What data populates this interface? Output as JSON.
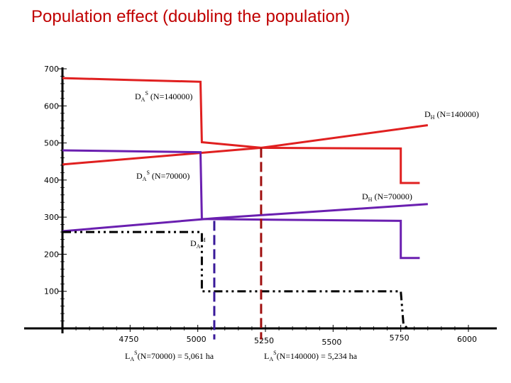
{
  "title": "Population effect (doubling the population)",
  "colors": {
    "red": "#e02020",
    "purple": "#6a1fb0",
    "black": "#000000",
    "red_dashed": "#a01010",
    "purple_dashed": "#3a1a9a"
  },
  "chart_data": {
    "type": "line",
    "title": "Population effect (doubling the population)",
    "xlim": [
      4500,
      6000
    ],
    "ylim": [
      0,
      700
    ],
    "grid": false,
    "y_ticks": [
      700,
      600,
      500,
      400,
      300,
      200,
      100
    ],
    "x_ticks": [
      4750,
      5000,
      5250,
      5500,
      5750,
      6000
    ],
    "series": [
      {
        "name": "DAS(N=140000)",
        "color": "red",
        "style": "solid",
        "points": [
          [
            4500,
            675
          ],
          [
            4750,
            670
          ],
          [
            5010,
            665
          ],
          [
            5015,
            502
          ],
          [
            5235,
            487
          ],
          [
            5750,
            485
          ],
          [
            5750,
            392
          ],
          [
            5820,
            392
          ]
        ]
      },
      {
        "name": "DH(N=140000)",
        "color": "red",
        "style": "solid",
        "points": [
          [
            4500,
            442
          ],
          [
            5234,
            487
          ],
          [
            5850,
            548
          ]
        ]
      },
      {
        "name": "DAS(N=70000)",
        "color": "purple",
        "style": "solid",
        "points": [
          [
            4500,
            480
          ],
          [
            5010,
            475
          ],
          [
            5015,
            295
          ],
          [
            5750,
            290
          ],
          [
            5750,
            190
          ],
          [
            5820,
            190
          ]
        ]
      },
      {
        "name": "DH(N=70000)",
        "color": "purple",
        "style": "solid",
        "points": [
          [
            4500,
            262
          ],
          [
            5061,
            297
          ],
          [
            5850,
            335
          ]
        ]
      },
      {
        "name": "DAM",
        "color": "black",
        "style": "dashdot",
        "points": [
          [
            4500,
            260
          ],
          [
            5015,
            260
          ],
          [
            5015,
            100
          ],
          [
            5750,
            100
          ],
          [
            5760,
            10
          ],
          [
            5775,
            0
          ]
        ]
      }
    ],
    "vlines": [
      {
        "x": 5061,
        "color": "purple_dashed",
        "from_y": 290,
        "to_y": -30
      },
      {
        "x": 5234,
        "color": "red_dashed",
        "from_y": 487,
        "to_y": -30
      }
    ],
    "labels": {
      "das140_main": "D",
      "das140_sub": "A",
      "das140_sup": "S",
      "das140_tail": " (N=140000)",
      "dh140_main": "D",
      "dh140_sub": "H",
      "dh140_tail": " (N=140000)",
      "das70_main": "D",
      "das70_sub": "A",
      "das70_sup": "S",
      "das70_tail": " (N=70000)",
      "dh70_main": "D",
      "dh70_sub": "H",
      "dh70_tail": " (N=70000)",
      "dam_main": "D",
      "dam_sub": "A",
      "dam_sup": "M",
      "la70_main": "L",
      "la70_sub": "A",
      "la70_sup": "S",
      "la70_tail": "(N=70000) = 5,061 ha",
      "la140_main": "L",
      "la140_sub": "A",
      "la140_sup": "S",
      "la140_tail": "(N=140000) = 5,234 ha"
    }
  }
}
